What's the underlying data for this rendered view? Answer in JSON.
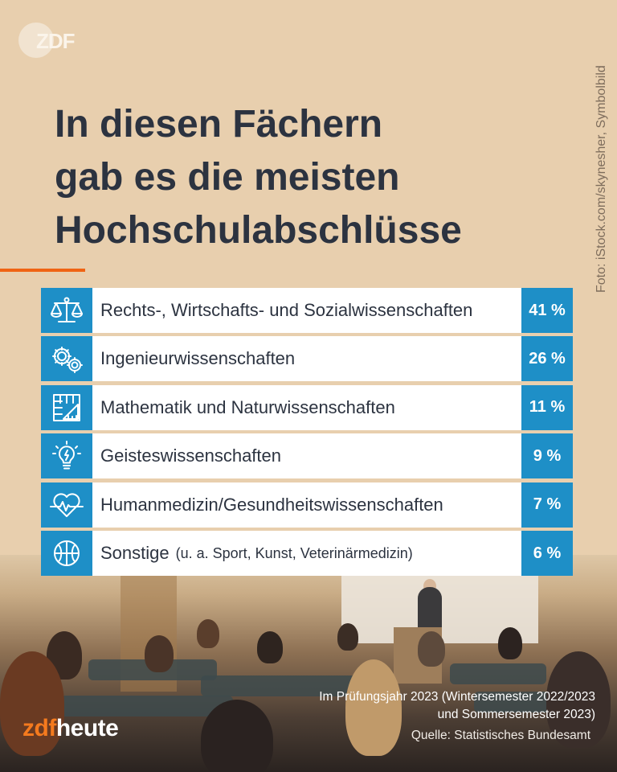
{
  "brand": {
    "logo_text": "ZDF",
    "footer_brand_prefix": "zdf",
    "footer_brand_suffix": "heute",
    "accent_color": "#f06414",
    "bar_color": "#1e8fc7"
  },
  "credit": "Foto: iStock.com/skynesher, Symbolbild",
  "title": "In diesen Fächern\ngab es die meisten\nHochschulabschlüsse",
  "chart_data": {
    "type": "bar",
    "categories": [
      {
        "label": "Rechts-, Wirtschafts- und Sozialwissenschaften",
        "note": "",
        "icon": "scales-icon",
        "value_label": "41 %"
      },
      {
        "label": "Ingenieurwissenschaften",
        "note": "",
        "icon": "gears-icon",
        "value_label": "26 %"
      },
      {
        "label": "Mathematik und Naturwissenschaften",
        "note": "",
        "icon": "ruler-grid-icon",
        "value_label": "11 %"
      },
      {
        "label": "Geisteswissenschaften",
        "note": "",
        "icon": "lightbulb-icon",
        "value_label": "9 %"
      },
      {
        "label": "Humanmedizin/Gesundheitswissenschaften",
        "note": "",
        "icon": "heartbeat-icon",
        "value_label": "7 %"
      },
      {
        "label": "Sonstige",
        "note": "(u. a. Sport, Kunst, Veterinärmedizin)",
        "icon": "basketball-icon",
        "value_label": "6 %"
      }
    ],
    "values": [
      41,
      26,
      11,
      9,
      7,
      6
    ],
    "unit": "%"
  },
  "footnote": "Im Prüfungsjahr 2023 (Wintersemester 2022/2023\nund Sommersemester 2023)",
  "source": "Quelle: Statistisches Bundesamt"
}
